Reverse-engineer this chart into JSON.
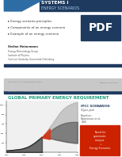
{
  "title_line1": "SYSTEMS I",
  "title_line2": "ENERGY SCENARIOS",
  "bullets": [
    "▸ Energy scenario principles",
    "▸ Components of an energy scenario",
    "▸ Example of an energy scenario"
  ],
  "author": "Stefan Heinemann",
  "affiliation1": "Energy Meteorology Group",
  "affiliation2": "Institute of Physics",
  "affiliation3": "Carl von Ossietzky Universitat Oldenburg",
  "chart_title": "GLOBAL PRIMARY ENERGY REQUIREMENT",
  "ipcc_label": "IPCC SCENARIOS",
  "ipcc_sub": "(EJ per year)",
  "based_on": "Based on:",
  "reference": "Nakicenovic et al.,\n2000",
  "box_text": "Need for\nsystematic\nanalysis\n↓\nEnergy Scenarios",
  "slide_bg": "#ffffff",
  "top_bar_dark": "#1e3a5f",
  "top_bar_blue": "#2e6da4",
  "bullet_color": "#333333",
  "chart_bg": "#f8f8f8",
  "chart_title_color": "#20a080",
  "ipcc_color": "#1e3a5f",
  "box_color": "#cc2200",
  "separator_color": "#1e3a5f",
  "footer_color": "#c8c8c8",
  "hist_fill_color": "#555555",
  "fan_light_color": "#aaaaaa",
  "fan_dark_color": "#444444",
  "red_highlight": "#dd3311"
}
